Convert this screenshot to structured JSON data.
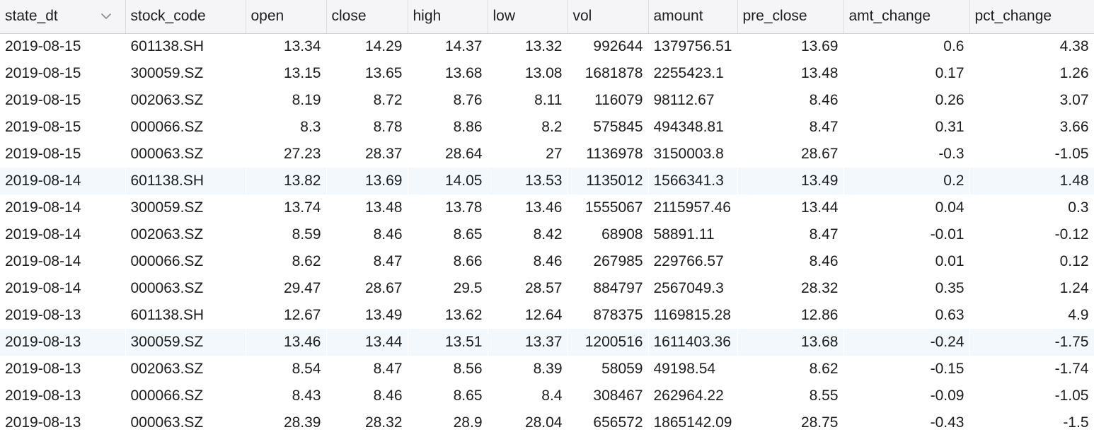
{
  "table": {
    "columns": [
      {
        "key": "state_dt",
        "label": "state_dt",
        "align": "left",
        "sort_icon": "chevron-down-icon"
      },
      {
        "key": "stock_code",
        "label": "stock_code",
        "align": "left"
      },
      {
        "key": "open",
        "label": "open",
        "align": "right"
      },
      {
        "key": "close",
        "label": "close",
        "align": "right"
      },
      {
        "key": "high",
        "label": "high",
        "align": "right"
      },
      {
        "key": "low",
        "label": "low",
        "align": "right"
      },
      {
        "key": "vol",
        "label": "vol",
        "align": "right"
      },
      {
        "key": "amount",
        "label": "amount",
        "align": "left"
      },
      {
        "key": "pre_close",
        "label": "pre_close",
        "align": "right"
      },
      {
        "key": "amt_change",
        "label": "amt_change",
        "align": "right"
      },
      {
        "key": "pct_change",
        "label": "pct_change",
        "align": "right"
      }
    ],
    "rows": [
      [
        "2019-08-15",
        "601138.SH",
        "13.34",
        "14.29",
        "14.37",
        "13.32",
        "992644",
        "1379756.51",
        "13.69",
        "0.6",
        "4.38"
      ],
      [
        "2019-08-15",
        "300059.SZ",
        "13.15",
        "13.65",
        "13.68",
        "13.08",
        "1681878",
        "2255423.1",
        "13.48",
        "0.17",
        "1.26"
      ],
      [
        "2019-08-15",
        "002063.SZ",
        "8.19",
        "8.72",
        "8.76",
        "8.11",
        "116079",
        "98112.67",
        "8.46",
        "0.26",
        "3.07"
      ],
      [
        "2019-08-15",
        "000066.SZ",
        "8.3",
        "8.78",
        "8.86",
        "8.2",
        "575845",
        "494348.81",
        "8.47",
        "0.31",
        "3.66"
      ],
      [
        "2019-08-15",
        "000063.SZ",
        "27.23",
        "28.37",
        "28.64",
        "27",
        "1136978",
        "3150003.8",
        "28.67",
        "-0.3",
        "-1.05"
      ],
      [
        "2019-08-14",
        "601138.SH",
        "13.82",
        "13.69",
        "14.05",
        "13.53",
        "1135012",
        "1566341.3",
        "13.49",
        "0.2",
        "1.48"
      ],
      [
        "2019-08-14",
        "300059.SZ",
        "13.74",
        "13.48",
        "13.78",
        "13.46",
        "1555067",
        "2115957.46",
        "13.44",
        "0.04",
        "0.3"
      ],
      [
        "2019-08-14",
        "002063.SZ",
        "8.59",
        "8.46",
        "8.65",
        "8.42",
        "68908",
        "58891.11",
        "8.47",
        "-0.01",
        "-0.12"
      ],
      [
        "2019-08-14",
        "000066.SZ",
        "8.62",
        "8.47",
        "8.66",
        "8.46",
        "267985",
        "229766.57",
        "8.46",
        "0.01",
        "0.12"
      ],
      [
        "2019-08-14",
        "000063.SZ",
        "29.47",
        "28.67",
        "29.5",
        "28.57",
        "884797",
        "2567049.3",
        "28.32",
        "0.35",
        "1.24"
      ],
      [
        "2019-08-13",
        "601138.SH",
        "12.67",
        "13.49",
        "13.62",
        "12.64",
        "878375",
        "1169815.28",
        "12.86",
        "0.63",
        "4.9"
      ],
      [
        "2019-08-13",
        "300059.SZ",
        "13.46",
        "13.44",
        "13.51",
        "13.37",
        "1200516",
        "1611403.36",
        "13.68",
        "-0.24",
        "-1.75"
      ],
      [
        "2019-08-13",
        "002063.SZ",
        "8.54",
        "8.47",
        "8.56",
        "8.39",
        "58059",
        "49198.54",
        "8.62",
        "-0.15",
        "-1.74"
      ],
      [
        "2019-08-13",
        "000066.SZ",
        "8.43",
        "8.46",
        "8.65",
        "8.4",
        "308467",
        "262964.22",
        "8.55",
        "-0.09",
        "-1.05"
      ],
      [
        "2019-08-13",
        "000063.SZ",
        "28.39",
        "28.32",
        "28.9",
        "28.04",
        "656572",
        "1865142.09",
        "28.75",
        "-0.43",
        "-1.5"
      ]
    ],
    "highlighted_rows": [
      5,
      11
    ]
  },
  "colors": {
    "header_bg": "#f5f5f7",
    "alt_row_bg": "#f3f8fc",
    "text": "#1d1d1f",
    "grid_line": "#dcdcdc"
  }
}
